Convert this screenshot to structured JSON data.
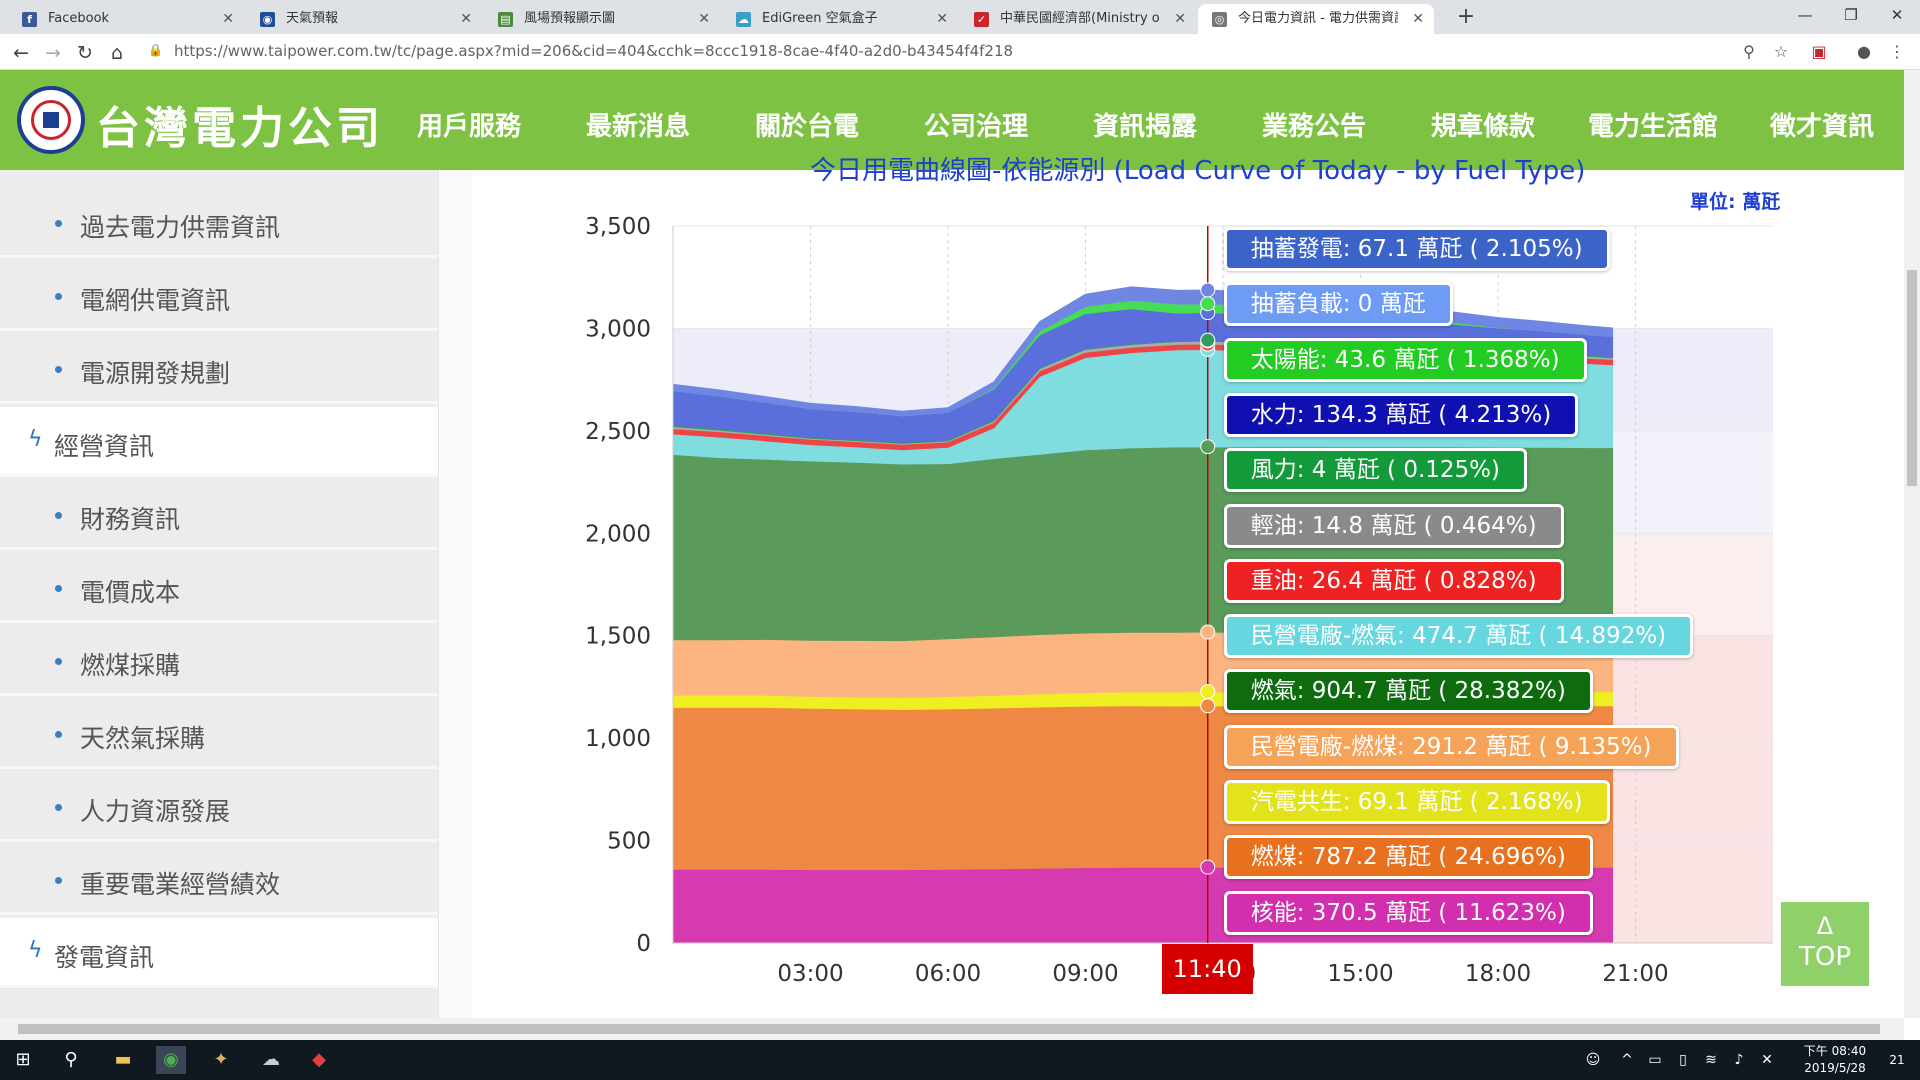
{
  "browser": {
    "tabs": [
      {
        "title": "Facebook",
        "icon": "facebook-icon",
        "color": "#3b5998",
        "glyph": "f",
        "active": false
      },
      {
        "title": "天氣預報",
        "icon": "eye-icon",
        "color": "#1f4e99",
        "glyph": "◉",
        "active": false
      },
      {
        "title": "風場預報顯示圖",
        "icon": "map-icon",
        "color": "#4a8a3a",
        "glyph": "▤",
        "active": false
      },
      {
        "title": "EdiGreen 空氣盒子",
        "icon": "cloud-icon",
        "color": "#3aa0c8",
        "glyph": "☁",
        "active": false
      },
      {
        "title": "中華民國經濟部(Ministry of Eco",
        "icon": "flag-icon",
        "color": "#c9262c",
        "glyph": "✓",
        "active": false
      },
      {
        "title": "今日電力資訊 - 電力供需資訊 - 電",
        "icon": "globe-icon",
        "color": "#777777",
        "glyph": "◎",
        "active": true
      }
    ],
    "url": "https://www.taipower.com.tw/tc/page.aspx?mid=206&cid=404&cchk=8ccc1918-8cae-4f40-a2d0-b43454f4f218"
  },
  "site": {
    "logo_text": "台灣電力公司",
    "nav": [
      "用戶服務",
      "最新消息",
      "關於台電",
      "公司治理",
      "資訊揭露",
      "業務公告",
      "規章條款",
      "電力生活館",
      "徵才資訊"
    ]
  },
  "sidebar": {
    "items": [
      {
        "label": "過去電力供需資訊",
        "type": "sub"
      },
      {
        "label": "電網供電資訊",
        "type": "sub"
      },
      {
        "label": "電源開發規劃",
        "type": "sub"
      },
      {
        "label": "經營資訊",
        "type": "section"
      },
      {
        "label": "財務資訊",
        "type": "sub"
      },
      {
        "label": "電價成本",
        "type": "sub"
      },
      {
        "label": "燃煤採購",
        "type": "sub"
      },
      {
        "label": "天然氣採購",
        "type": "sub"
      },
      {
        "label": "人力資源發展",
        "type": "sub"
      },
      {
        "label": "重要電業經營績效",
        "type": "sub"
      },
      {
        "label": "發電資訊",
        "type": "section"
      }
    ]
  },
  "chart_data": {
    "type": "area",
    "title": "今日用電曲線圖-依能源別 (Load Curve of Today - by Fuel Type)",
    "unit_label": "單位: 萬瓩",
    "ylim": [
      0,
      3500
    ],
    "y_ticks": [
      0,
      500,
      1000,
      1500,
      2000,
      2500,
      3000,
      3500
    ],
    "y_tick_labels": [
      "0",
      "500",
      "1,000",
      "1,500",
      "2,000",
      "2,500",
      "3,000",
      "3,500"
    ],
    "x_ticks": [
      3,
      6,
      9,
      12,
      15,
      18,
      21
    ],
    "x_tick_labels": [
      "03:00",
      "06:00",
      "09:00",
      "12:00",
      "15:00",
      "18:00",
      "21:00"
    ],
    "xlim": [
      0,
      24
    ],
    "hover_time": "11:40",
    "hover_hour": 11.667,
    "x": [
      0,
      1,
      2,
      3,
      4,
      5,
      6,
      7,
      8,
      9,
      10,
      11,
      11.667,
      12,
      13,
      14,
      15,
      16,
      17,
      18,
      19,
      20,
      20.5
    ],
    "series": [
      {
        "name": "核能",
        "color": "#d63ab0",
        "values": [
          360,
          360,
          360,
          358,
          358,
          358,
          360,
          362,
          365,
          368,
          370,
          370,
          370.5,
          370,
          370,
          370,
          370,
          370,
          370,
          370,
          370,
          370,
          370
        ]
      },
      {
        "name": "燃煤",
        "color": "#ee8844",
        "values": [
          790,
          790,
          790,
          788,
          785,
          782,
          783,
          785,
          787,
          788,
          788,
          787,
          787.2,
          787,
          788,
          788,
          788,
          788,
          788,
          788,
          788,
          788,
          788
        ]
      },
      {
        "name": "汽電共生",
        "color": "#eeee22",
        "values": [
          60,
          60,
          60,
          58,
          58,
          58,
          60,
          62,
          64,
          66,
          68,
          69,
          69.1,
          69,
          69,
          69,
          69,
          69,
          69,
          69,
          69,
          69,
          69
        ]
      },
      {
        "name": "民營電廠-燃煤",
        "color": "#fcb480",
        "values": [
          270,
          270,
          272,
          274,
          276,
          278,
          282,
          286,
          290,
          291,
          291,
          291,
          291.2,
          291,
          291,
          291,
          291,
          291,
          291,
          291,
          291,
          291,
          291
        ]
      },
      {
        "name": "燃氣",
        "color": "#5a9a5a",
        "values": [
          905,
          890,
          880,
          875,
          870,
          862,
          855,
          870,
          880,
          895,
          900,
          905,
          904.7,
          904,
          904,
          904,
          903,
          903,
          903,
          902,
          902,
          900,
          900
        ]
      },
      {
        "name": "民營電廠-燃氣",
        "color": "#7fdde0",
        "values": [
          100,
          100,
          90,
          80,
          75,
          70,
          80,
          150,
          380,
          450,
          465,
          474,
          474.7,
          474,
          470,
          465,
          460,
          450,
          440,
          430,
          420,
          410,
          405
        ]
      },
      {
        "name": "重油",
        "color": "#ee4444",
        "values": [
          26,
          26,
          26,
          26,
          26,
          26,
          26,
          26,
          26,
          26,
          26,
          26,
          26.4,
          26,
          26,
          26,
          26,
          26,
          26,
          26,
          26,
          26,
          26
        ]
      },
      {
        "name": "輕油",
        "color": "#aaaaaa",
        "values": [
          10,
          8,
          6,
          5,
          5,
          5,
          5,
          8,
          12,
          14,
          14,
          14,
          14.8,
          14,
          12,
          10,
          8,
          8,
          10,
          12,
          12,
          10,
          8
        ]
      },
      {
        "name": "風力",
        "color": "#2c9e5e",
        "values": [
          6,
          6,
          6,
          5,
          5,
          5,
          5,
          5,
          4,
          4,
          4,
          4,
          4,
          4,
          4,
          4,
          4,
          4,
          4,
          5,
          5,
          5,
          5
        ]
      },
      {
        "name": "水力",
        "color": "#5b6fdc",
        "values": [
          170,
          160,
          150,
          140,
          135,
          130,
          135,
          150,
          160,
          170,
          170,
          135,
          134.3,
          135,
          140,
          145,
          140,
          130,
          120,
          110,
          105,
          100,
          100
        ]
      },
      {
        "name": "太陽能",
        "color": "#44dd55",
        "values": [
          0,
          0,
          0,
          0,
          0,
          0,
          0,
          5,
          20,
          35,
          42,
          44,
          43.6,
          44,
          42,
          38,
          30,
          20,
          10,
          2,
          0,
          0,
          0
        ]
      },
      {
        "name": "抽蓄負載",
        "color": "#88aaff",
        "values": [
          0,
          0,
          0,
          0,
          0,
          0,
          0,
          0,
          0,
          0,
          0,
          0,
          0,
          0,
          0,
          0,
          0,
          0,
          0,
          0,
          0,
          0,
          0
        ]
      },
      {
        "name": "抽蓄發電",
        "color": "#6f86e3",
        "values": [
          30,
          30,
          28,
          25,
          25,
          22,
          22,
          30,
          45,
          60,
          65,
          67,
          67.1,
          66,
          64,
          62,
          60,
          55,
          50,
          48,
          45,
          42,
          40
        ]
      }
    ],
    "tooltip": [
      {
        "name": "抽蓄發電",
        "text": "抽蓄發電: 67.1 萬瓩 ( 2.105%)",
        "bg": "#3b63c8",
        "value": 67.1
      },
      {
        "name": "抽蓄負載",
        "text": "抽蓄負載: 0 萬瓩",
        "bg": "#6e9cf5",
        "value": 0
      },
      {
        "name": "太陽能",
        "text": "太陽能: 43.6 萬瓩 ( 1.368%)",
        "bg": "#22cc22",
        "value": 43.6
      },
      {
        "name": "水力",
        "text": "水力: 134.3 萬瓩 ( 4.213%)",
        "bg": "#1010b0",
        "value": 134.3
      },
      {
        "name": "風力",
        "text": "風力: 4 萬瓩 ( 0.125%)",
        "bg": "#139a3a",
        "value": 4
      },
      {
        "name": "輕油",
        "text": "輕油: 14.8 萬瓩 ( 0.464%)",
        "bg": "#8a8a8a",
        "value": 14.8
      },
      {
        "name": "重油",
        "text": "重油: 26.4 萬瓩 ( 0.828%)",
        "bg": "#ee2222",
        "value": 26.4
      },
      {
        "name": "民營電廠-燃氣",
        "text": "民營電廠-燃氣: 474.7 萬瓩 ( 14.892%)",
        "bg": "#66d7df",
        "value": 474.7
      },
      {
        "name": "燃氣",
        "text": "燃氣: 904.7 萬瓩 ( 28.382%)",
        "bg": "#0e6b0e",
        "value": 904.7
      },
      {
        "name": "民營電廠-燃煤",
        "text": "民營電廠-燃煤: 291.2 萬瓩 ( 9.135%)",
        "bg": "#f6a35a",
        "value": 291.2
      },
      {
        "name": "汽電共生",
        "text": "汽電共生: 69.1 萬瓩 ( 2.168%)",
        "bg": "#e3e31c",
        "value": 69.1
      },
      {
        "name": "燃煤",
        "text": "燃煤: 787.2 萬瓩 ( 24.696%)",
        "bg": "#e8711f",
        "value": 787.2
      },
      {
        "name": "核能",
        "text": "核能: 370.5 萬瓩 ( 11.623%)",
        "bg": "#d12fae",
        "value": 370.5
      }
    ]
  },
  "top_button": {
    "arrow": "Δ",
    "label": "TOP"
  },
  "taskbar": {
    "time": "下午 08:40",
    "date": "2019/5/28",
    "notifications": "21"
  }
}
